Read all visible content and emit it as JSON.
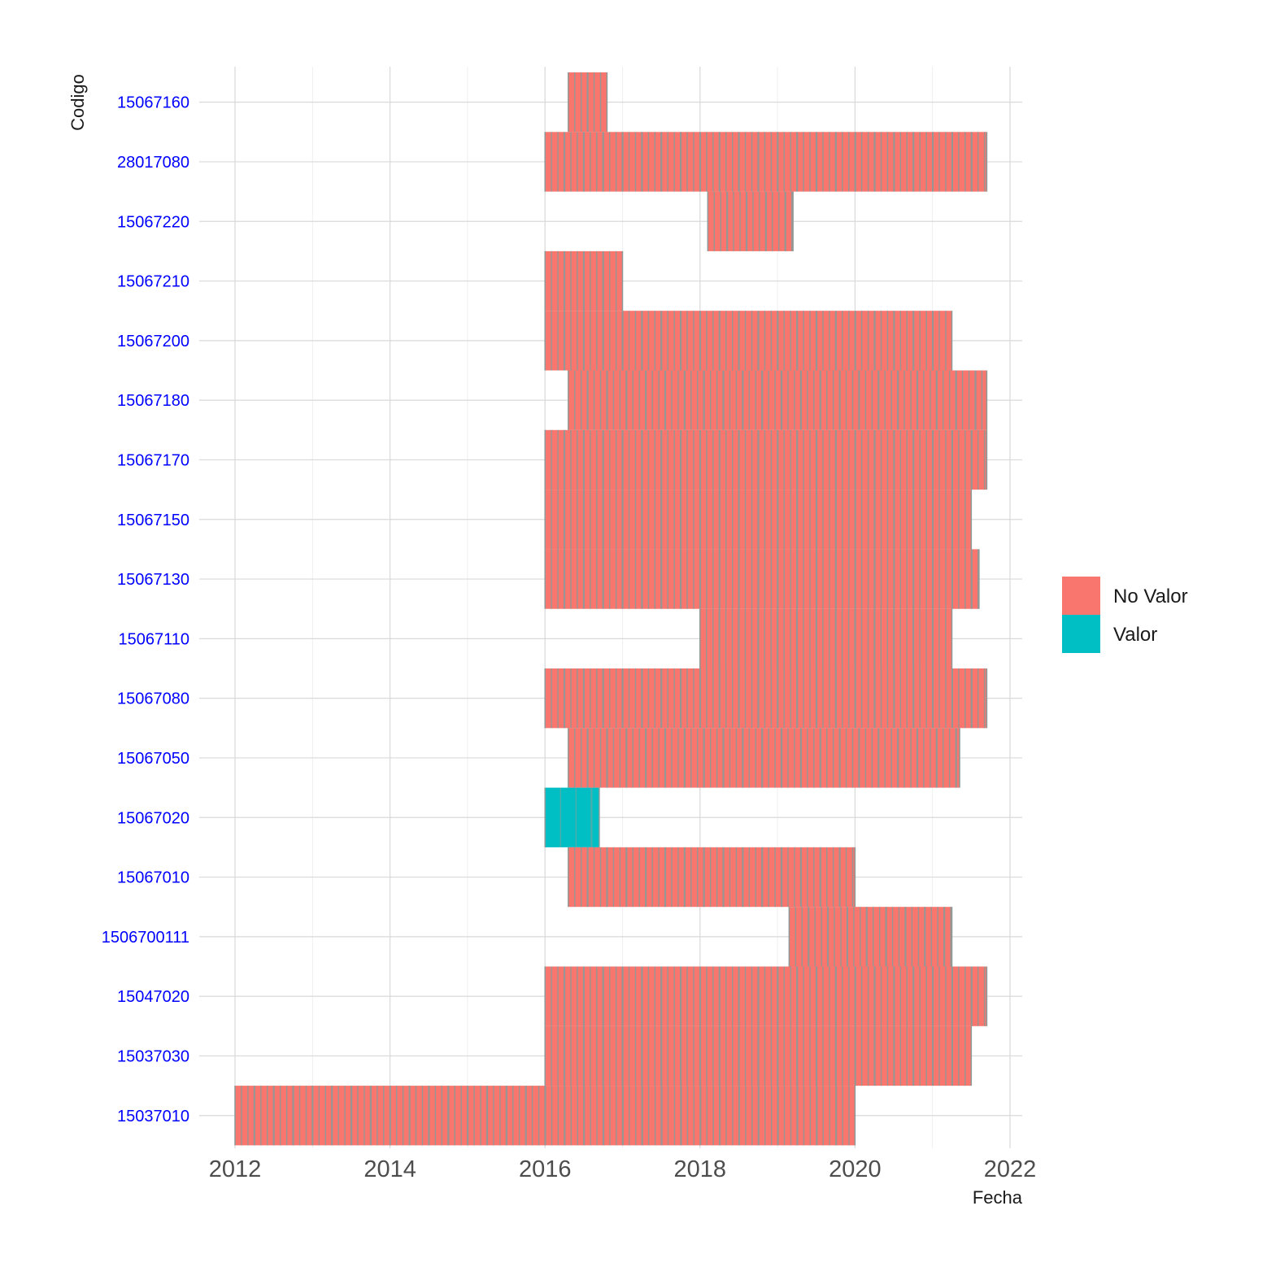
{
  "chart_data": {
    "type": "heatmap",
    "title": "",
    "xlabel": "Fecha",
    "ylabel": "Codigo",
    "xlim": [
      2012,
      2022.2
    ],
    "x_ticks": [
      "2012",
      "2014",
      "2016",
      "2018",
      "2020",
      "2022"
    ],
    "legend_position": "right",
    "colors": {
      "No Valor": "#f8766d",
      "Valor": "#00bfc4",
      "separator": "#8c9a98",
      "tick_label": "#0000ff"
    },
    "legend": [
      {
        "label": "No Valor",
        "color": "#f8766d"
      },
      {
        "label": "Valor",
        "color": "#00bfc4"
      }
    ],
    "rows": [
      {
        "codigo": "15067160",
        "segments": [
          {
            "start": 2016.3,
            "end": 2016.8,
            "category": "No Valor"
          }
        ]
      },
      {
        "codigo": "28017080",
        "segments": [
          {
            "start": 2016.0,
            "end": 2021.7,
            "category": "No Valor"
          }
        ]
      },
      {
        "codigo": "15067220",
        "segments": [
          {
            "start": 2018.1,
            "end": 2019.2,
            "category": "No Valor"
          }
        ]
      },
      {
        "codigo": "15067210",
        "segments": [
          {
            "start": 2016.0,
            "end": 2017.0,
            "category": "No Valor"
          }
        ]
      },
      {
        "codigo": "15067200",
        "segments": [
          {
            "start": 2016.0,
            "end": 2021.25,
            "category": "No Valor"
          }
        ]
      },
      {
        "codigo": "15067180",
        "segments": [
          {
            "start": 2016.3,
            "end": 2021.7,
            "category": "No Valor"
          }
        ]
      },
      {
        "codigo": "15067170",
        "segments": [
          {
            "start": 2016.0,
            "end": 2021.7,
            "category": "No Valor"
          }
        ]
      },
      {
        "codigo": "15067150",
        "segments": [
          {
            "start": 2016.0,
            "end": 2021.5,
            "category": "No Valor"
          }
        ]
      },
      {
        "codigo": "15067130",
        "segments": [
          {
            "start": 2016.0,
            "end": 2021.6,
            "category": "No Valor"
          }
        ]
      },
      {
        "codigo": "15067110",
        "segments": [
          {
            "start": 2018.0,
            "end": 2021.25,
            "category": "No Valor"
          }
        ]
      },
      {
        "codigo": "15067080",
        "segments": [
          {
            "start": 2016.0,
            "end": 2021.7,
            "category": "No Valor"
          }
        ]
      },
      {
        "codigo": "15067050",
        "segments": [
          {
            "start": 2016.3,
            "end": 2021.35,
            "category": "No Valor"
          }
        ]
      },
      {
        "codigo": "15067020",
        "segments": [
          {
            "start": 2016.0,
            "end": 2016.7,
            "category": "Valor"
          }
        ]
      },
      {
        "codigo": "15067010",
        "segments": [
          {
            "start": 2016.3,
            "end": 2020.0,
            "category": "No Valor"
          }
        ]
      },
      {
        "codigo": "1506700111",
        "segments": [
          {
            "start": 2019.15,
            "end": 2021.25,
            "category": "No Valor"
          }
        ]
      },
      {
        "codigo": "15047020",
        "segments": [
          {
            "start": 2016.0,
            "end": 2021.7,
            "category": "No Valor"
          }
        ]
      },
      {
        "codigo": "15037030",
        "segments": [
          {
            "start": 2016.0,
            "end": 2021.5,
            "category": "No Valor"
          }
        ]
      },
      {
        "codigo": "15037010",
        "segments": [
          {
            "start": 2012.0,
            "end": 2020.0,
            "category": "No Valor"
          }
        ]
      }
    ]
  }
}
